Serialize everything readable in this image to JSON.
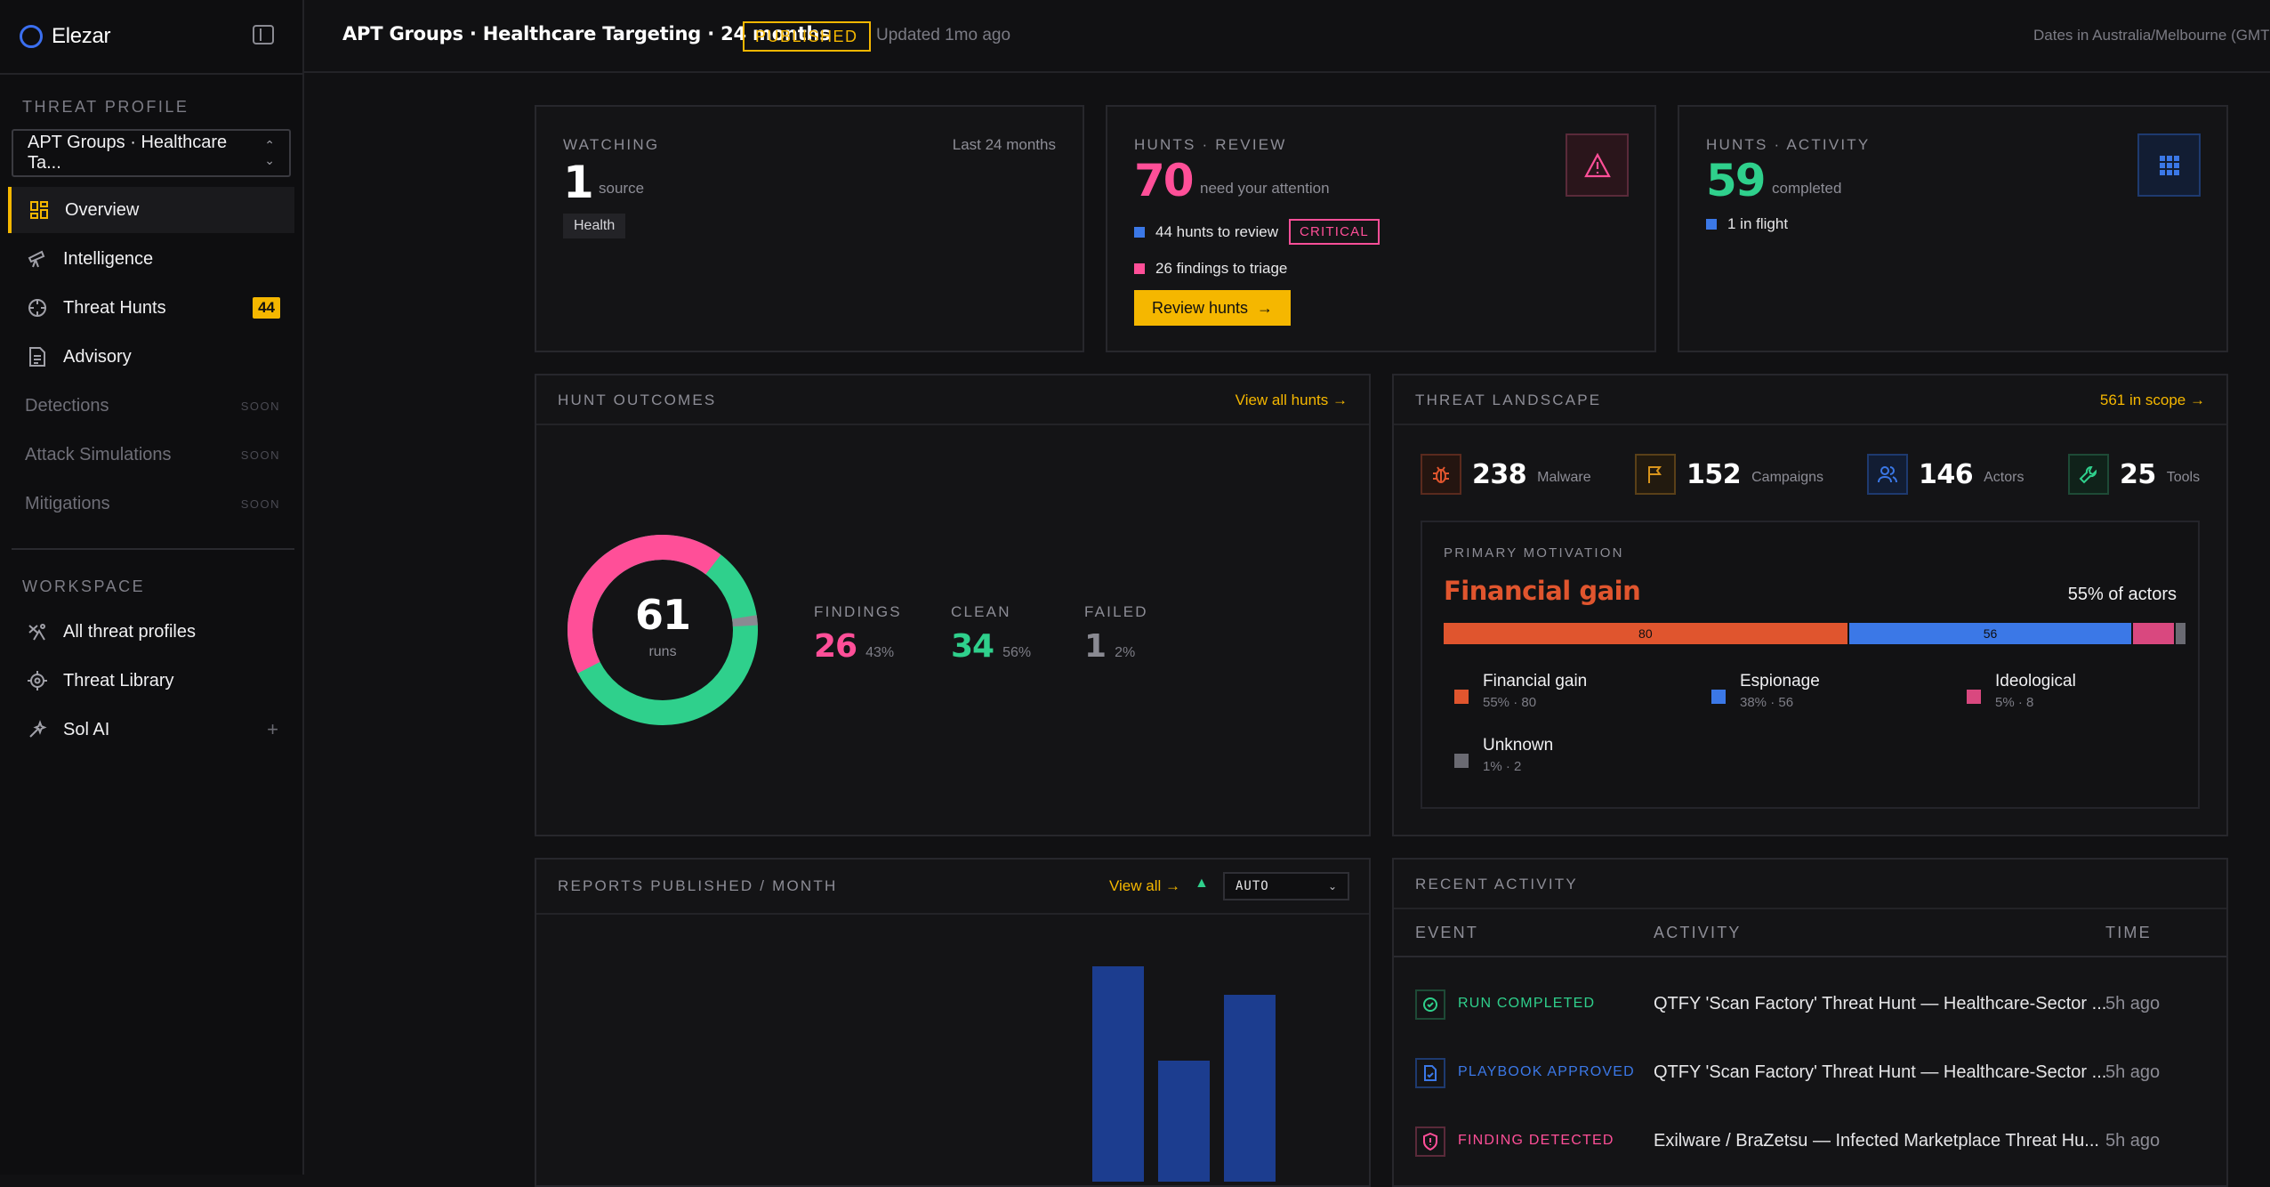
{
  "app": {
    "name": "Elezar"
  },
  "sidebar": {
    "threat_profile_label": "THREAT PROFILE",
    "profile_select_value": "APT Groups · Healthcare Ta...",
    "nav": [
      {
        "label": "Overview",
        "icon": "dashboard-icon"
      },
      {
        "label": "Intelligence",
        "icon": "telescope-icon"
      },
      {
        "label": "Threat Hunts",
        "icon": "crosshair-icon",
        "badge": "44"
      },
      {
        "label": "Advisory",
        "icon": "document-icon"
      },
      {
        "label": "Detections",
        "soon": "SOON"
      },
      {
        "label": "Attack Simulations",
        "soon": "SOON"
      },
      {
        "label": "Mitigations",
        "soon": "SOON"
      }
    ],
    "workspace_label": "WORKSPACE",
    "workspace": [
      {
        "label": "All threat profiles",
        "icon": "profiles-icon"
      },
      {
        "label": "Threat Library",
        "icon": "bug-icon"
      },
      {
        "label": "Sol AI",
        "icon": "sparkle-icon",
        "action": "+"
      }
    ]
  },
  "header": {
    "title": "APT Groups · Healthcare Targeting · 24 months",
    "status": "PUBLISHED",
    "updated": "Updated 1mo ago",
    "timezone": "Dates in Australia/Melbourne (GMT+"
  },
  "watching": {
    "label": "WATCHING",
    "period": "Last 24 months",
    "count": "1",
    "unit": "source",
    "tag": "Health"
  },
  "hunts_review": {
    "label": "HUNTS · REVIEW",
    "count": "70",
    "caption": "need your attention",
    "line1": "44 hunts to review",
    "line1_badge": "CRITICAL",
    "line2": "26 findings to triage",
    "button": "Review hunts",
    "line1_color": "#3b78e7",
    "line2_color": "#ff4f98"
  },
  "hunts_activity": {
    "label": "HUNTS · ACTIVITY",
    "count": "59",
    "caption": "completed",
    "line1": "1 in flight"
  },
  "hunt_outcomes": {
    "label": "HUNT OUTCOMES",
    "link": "View all hunts",
    "total": "61",
    "total_unit": "runs",
    "stats": [
      {
        "label": "FINDINGS",
        "value": "26",
        "pct": "43%",
        "color": "#ff4f98"
      },
      {
        "label": "CLEAN",
        "value": "34",
        "pct": "56%",
        "color": "#2fd08c"
      },
      {
        "label": "FAILED",
        "value": "1",
        "pct": "2%",
        "color": "#8a8a92"
      }
    ]
  },
  "threat_landscape": {
    "label": "THREAT LANDSCAPE",
    "link": "561 in scope",
    "metrics": [
      {
        "value": "238",
        "label": "Malware",
        "icon": "bug-icon",
        "color": "#e0552e"
      },
      {
        "value": "152",
        "label": "Campaigns",
        "icon": "flag-icon",
        "color": "#d9951c"
      },
      {
        "value": "146",
        "label": "Actors",
        "icon": "users-icon",
        "color": "#3b78e7"
      },
      {
        "value": "25",
        "label": "Tools",
        "icon": "wrench-icon",
        "color": "#2fd08c"
      }
    ],
    "motivation": {
      "label": "PRIMARY MOTIVATION",
      "top": "Financial gain",
      "share": "55% of actors",
      "segments": [
        {
          "name": "Financial gain",
          "value": 80,
          "display": "80",
          "detail": "55% · 80",
          "color": "#e0552e"
        },
        {
          "name": "Espionage",
          "value": 56,
          "display": "56",
          "detail": "38% · 56",
          "color": "#3b78e7"
        },
        {
          "name": "Ideological",
          "value": 8,
          "display": "",
          "detail": "5% · 8",
          "color": "#d9487f"
        },
        {
          "name": "Unknown",
          "value": 2,
          "display": "",
          "detail": "1% · 2",
          "color": "#6a6a72"
        }
      ]
    }
  },
  "reports": {
    "label": "REPORTS PUBLISHED / MONTH",
    "link": "View all",
    "select_value": "AUTO"
  },
  "chart_data": {
    "type": "bar",
    "values": [
      242,
      136,
      210
    ],
    "ylabel": ""
  },
  "recent_activity": {
    "label": "RECENT ACTIVITY",
    "columns": [
      "EVENT",
      "ACTIVITY",
      "TIME"
    ],
    "rows": [
      {
        "event": "RUN COMPLETED",
        "color": "#2fd08c",
        "icon": "check-circle-icon",
        "activity": "QTFY 'Scan Factory' Threat Hunt — Healthcare-Sector ...",
        "time": "5h ago"
      },
      {
        "event": "PLAYBOOK APPROVED",
        "color": "#3b78e7",
        "icon": "file-check-icon",
        "activity": "QTFY 'Scan Factory' Threat Hunt — Healthcare-Sector ...",
        "time": "5h ago"
      },
      {
        "event": "FINDING DETECTED",
        "color": "#ff4f98",
        "icon": "shield-alert-icon",
        "activity": "Exilware / BraZetsu — Infected Marketplace Threat Hu...",
        "time": "5h ago"
      }
    ]
  }
}
